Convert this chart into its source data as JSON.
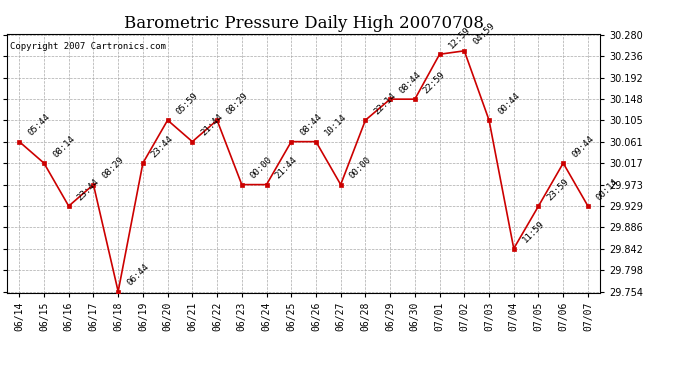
{
  "title": "Barometric Pressure Daily High 20070708",
  "copyright": "Copyright 2007 Cartronics.com",
  "x_labels": [
    "06/14",
    "06/15",
    "06/16",
    "06/17",
    "06/18",
    "06/19",
    "06/20",
    "06/21",
    "06/22",
    "06/23",
    "06/24",
    "06/25",
    "06/26",
    "06/27",
    "06/28",
    "06/29",
    "06/30",
    "07/01",
    "07/02",
    "07/03",
    "07/04",
    "07/05",
    "07/06",
    "07/07"
  ],
  "y_values": [
    30.061,
    30.017,
    29.929,
    29.973,
    29.754,
    30.017,
    30.105,
    30.061,
    30.105,
    29.973,
    29.973,
    30.061,
    30.061,
    29.973,
    30.105,
    30.148,
    30.148,
    30.24,
    30.247,
    30.105,
    29.842,
    29.929,
    30.017,
    29.929
  ],
  "point_labels": [
    "05:44",
    "08:14",
    "23:44",
    "08:29",
    "06:44",
    "23:44",
    "05:59",
    "21:44",
    "08:29",
    "00:00",
    "21:44",
    "08:44",
    "10:14",
    "00:00",
    "22:14",
    "08:44",
    "22:59",
    "12:59",
    "04:59",
    "00:44",
    "11:59",
    "23:59",
    "09:44",
    "00:14"
  ],
  "line_color": "#cc0000",
  "marker_color": "#cc0000",
  "background_color": "#ffffff",
  "grid_color": "#aaaaaa",
  "ylim_min": 29.754,
  "ylim_max": 30.28,
  "ytick_values": [
    29.754,
    29.798,
    29.842,
    29.886,
    29.929,
    29.973,
    30.017,
    30.061,
    30.105,
    30.148,
    30.192,
    30.236,
    30.28
  ],
  "title_fontsize": 12,
  "label_fontsize": 7,
  "point_label_fontsize": 6.5,
  "copyright_fontsize": 6.5
}
